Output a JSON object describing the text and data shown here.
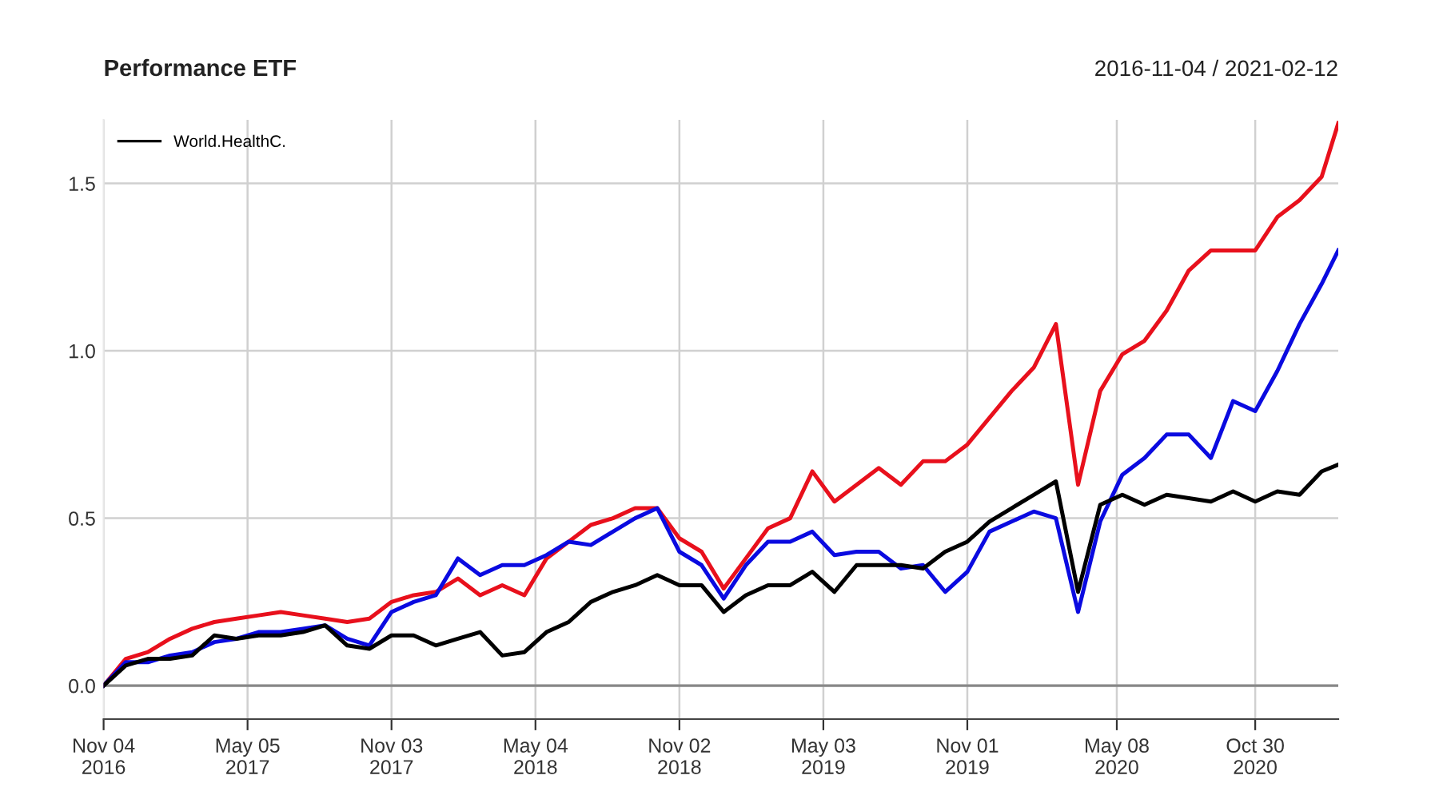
{
  "chart_data": {
    "type": "line",
    "title": "Performance ETF",
    "subtitle": "2016-11-04 / 2021-02-12",
    "x": [
      "2016-11-04",
      "2016-12-02",
      "2016-12-30",
      "2017-01-27",
      "2017-02-24",
      "2017-03-24",
      "2017-04-21",
      "2017-05-19",
      "2017-06-16",
      "2017-07-14",
      "2017-08-11",
      "2017-09-08",
      "2017-10-06",
      "2017-11-03",
      "2017-12-01",
      "2017-12-29",
      "2018-01-26",
      "2018-02-23",
      "2018-03-23",
      "2018-04-20",
      "2018-05-18",
      "2018-06-15",
      "2018-07-13",
      "2018-08-10",
      "2018-09-07",
      "2018-10-05",
      "2018-11-02",
      "2018-11-30",
      "2018-12-28",
      "2019-01-25",
      "2019-02-22",
      "2019-03-22",
      "2019-04-19",
      "2019-05-17",
      "2019-06-14",
      "2019-07-12",
      "2019-08-09",
      "2019-09-06",
      "2019-10-04",
      "2019-11-01",
      "2019-11-29",
      "2019-12-27",
      "2020-01-24",
      "2020-02-21",
      "2020-03-20",
      "2020-04-17",
      "2020-05-15",
      "2020-06-12",
      "2020-07-10",
      "2020-08-07",
      "2020-09-04",
      "2020-10-02",
      "2020-10-30",
      "2020-11-27",
      "2020-12-25",
      "2021-01-22",
      "2021-02-12"
    ],
    "series": [
      {
        "color": "#e8101c",
        "values": [
          0,
          0.08,
          0.1,
          0.14,
          0.17,
          0.19,
          0.2,
          0.21,
          0.22,
          0.21,
          0.2,
          0.19,
          0.2,
          0.25,
          0.27,
          0.28,
          0.32,
          0.27,
          0.3,
          0.27,
          0.38,
          0.43,
          0.48,
          0.5,
          0.53,
          0.53,
          0.44,
          0.4,
          0.29,
          0.38,
          0.47,
          0.5,
          0.64,
          0.55,
          0.6,
          0.65,
          0.6,
          0.67,
          0.67,
          0.72,
          0.8,
          0.88,
          0.95,
          1.08,
          0.6,
          0.88,
          0.99,
          1.03,
          1.12,
          1.24,
          1.3,
          1.3,
          1.3,
          1.4,
          1.45,
          1.52,
          1.68
        ]
      },
      {
        "color": "#0a0ae0",
        "values": [
          0,
          0.07,
          0.07,
          0.09,
          0.1,
          0.13,
          0.14,
          0.16,
          0.16,
          0.17,
          0.18,
          0.14,
          0.12,
          0.22,
          0.25,
          0.27,
          0.38,
          0.33,
          0.36,
          0.36,
          0.39,
          0.43,
          0.42,
          0.46,
          0.5,
          0.53,
          0.4,
          0.36,
          0.26,
          0.36,
          0.43,
          0.43,
          0.46,
          0.39,
          0.4,
          0.4,
          0.35,
          0.36,
          0.28,
          0.34,
          0.46,
          0.49,
          0.52,
          0.5,
          0.22,
          0.49,
          0.63,
          0.68,
          0.75,
          0.75,
          0.68,
          0.85,
          0.82,
          0.94,
          1.08,
          1.2,
          1.3
        ]
      },
      {
        "name": "World.HealthC.",
        "color": "#000000",
        "values": [
          0,
          0.06,
          0.08,
          0.08,
          0.09,
          0.15,
          0.14,
          0.15,
          0.15,
          0.16,
          0.18,
          0.12,
          0.11,
          0.15,
          0.15,
          0.12,
          0.14,
          0.16,
          0.09,
          0.1,
          0.16,
          0.19,
          0.25,
          0.28,
          0.3,
          0.33,
          0.3,
          0.3,
          0.22,
          0.27,
          0.3,
          0.3,
          0.34,
          0.28,
          0.36,
          0.36,
          0.36,
          0.35,
          0.4,
          0.43,
          0.49,
          0.53,
          0.57,
          0.61,
          0.28,
          0.54,
          0.57,
          0.54,
          0.57,
          0.56,
          0.55,
          0.58,
          0.55,
          0.58,
          0.57,
          0.64,
          0.66
        ]
      }
    ],
    "xlim": [
      "2016-11-04",
      "2021-02-12"
    ],
    "xticks": [
      {
        "value": "2016-11-04",
        "label": "Nov 04\n2016"
      },
      {
        "value": "2017-05-05",
        "label": "May 05\n2017"
      },
      {
        "value": "2017-11-03",
        "label": "Nov 03\n2017"
      },
      {
        "value": "2018-05-04",
        "label": "May 04\n2018"
      },
      {
        "value": "2018-11-02",
        "label": "Nov 02\n2018"
      },
      {
        "value": "2019-05-03",
        "label": "May 03\n2019"
      },
      {
        "value": "2019-11-01",
        "label": "Nov 01\n2019"
      },
      {
        "value": "2020-05-08",
        "label": "May 08\n2020"
      },
      {
        "value": "2020-10-30",
        "label": "Oct 30\n2020"
      }
    ],
    "ylim": [
      -0.1,
      1.69
    ],
    "yticks": [
      {
        "value": 0,
        "label": "0.0"
      },
      {
        "value": 0.5,
        "label": "0.5"
      },
      {
        "value": 1,
        "label": "1.0"
      },
      {
        "value": 1.5,
        "label": "1.5"
      }
    ],
    "ref_lines": [
      {
        "axis": "y",
        "value": 0,
        "color": "#888888"
      }
    ],
    "grid": true,
    "legend": "top left",
    "line_style": "solid",
    "marker": "none"
  }
}
